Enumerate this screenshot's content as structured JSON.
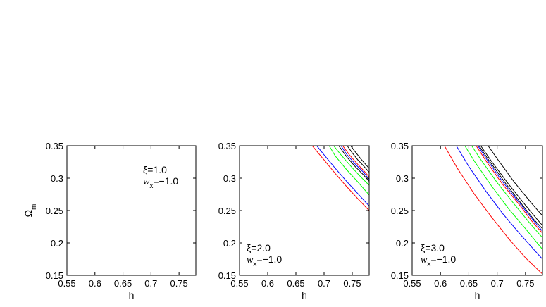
{
  "chart_data": [
    {
      "type": "line",
      "xlabel": "h",
      "ylabel": "Ω",
      "ylabel_sub": "m",
      "xlim": [
        0.55,
        0.78
      ],
      "ylim": [
        0.15,
        0.35
      ],
      "xticks": [
        "0.55",
        "0.6",
        "0.65",
        "0.7",
        "0.75"
      ],
      "yticks": [
        "0.15",
        "0.2",
        "0.25",
        "0.3",
        "0.35"
      ],
      "annotation": {
        "xi": "ξ=1.0",
        "w": "w",
        "w_sub": "x",
        "w_val": "=−1.0"
      },
      "series": []
    },
    {
      "type": "line",
      "xlabel": "h",
      "ylabel": "",
      "ylabel_sub": "",
      "xlim": [
        0.55,
        0.78
      ],
      "ylim": [
        0.15,
        0.35
      ],
      "xticks": [
        "0.55",
        "0.6",
        "0.65",
        "0.7",
        "0.75"
      ],
      "yticks": [
        "0.15",
        "0.2",
        "0.25",
        "0.3",
        "0.35"
      ],
      "annotation": {
        "xi": "ξ=2.0",
        "w": "w",
        "w_sub": "x",
        "w_val": "=−1.0"
      },
      "series": [
        {
          "color": "#ff0000",
          "x": [
            0.679,
            0.7,
            0.72,
            0.74,
            0.76,
            0.78
          ],
          "y": [
            0.35,
            0.328,
            0.307,
            0.287,
            0.268,
            0.25
          ]
        },
        {
          "color": "#0000ff",
          "x": [
            0.687,
            0.7,
            0.72,
            0.74,
            0.76,
            0.78
          ],
          "y": [
            0.35,
            0.336,
            0.315,
            0.295,
            0.276,
            0.257
          ]
        },
        {
          "color": "#00ff00",
          "x": [
            0.709,
            0.72,
            0.74,
            0.76,
            0.78
          ],
          "y": [
            0.35,
            0.334,
            0.313,
            0.294,
            0.274
          ]
        },
        {
          "color": "#00ff00",
          "x": [
            0.717,
            0.73,
            0.75,
            0.765,
            0.78
          ],
          "y": [
            0.35,
            0.336,
            0.316,
            0.302,
            0.289
          ]
        },
        {
          "color": "#000000",
          "x": [
            0.726,
            0.74,
            0.755,
            0.77,
            0.78
          ],
          "y": [
            0.35,
            0.333,
            0.318,
            0.305,
            0.295
          ]
        },
        {
          "color": "#0000ff",
          "x": [
            0.73,
            0.74,
            0.755,
            0.77,
            0.78
          ],
          "y": [
            0.35,
            0.337,
            0.322,
            0.309,
            0.298
          ]
        },
        {
          "color": "#ff0000",
          "x": [
            0.733,
            0.745,
            0.76,
            0.77,
            0.78
          ],
          "y": [
            0.35,
            0.336,
            0.321,
            0.312,
            0.302
          ]
        },
        {
          "color": "#000000",
          "x": [
            0.741,
            0.75,
            0.76,
            0.77,
            0.78
          ],
          "y": [
            0.35,
            0.339,
            0.328,
            0.319,
            0.309
          ]
        },
        {
          "color": "#000000",
          "x": [
            0.747,
            0.755,
            0.765,
            0.775,
            0.78
          ],
          "y": [
            0.35,
            0.341,
            0.33,
            0.32,
            0.315
          ]
        }
      ]
    },
    {
      "type": "line",
      "xlabel": "h",
      "ylabel": "",
      "ylabel_sub": "",
      "xlim": [
        0.55,
        0.78
      ],
      "ylim": [
        0.15,
        0.35
      ],
      "xticks": [
        "0.55",
        "0.6",
        "0.65",
        "0.7",
        "0.75"
      ],
      "yticks": [
        "0.15",
        "0.2",
        "0.25",
        "0.3",
        "0.35"
      ],
      "annotation": {
        "xi": "ξ=3.0",
        "w": "w",
        "w_sub": "x",
        "w_val": "=−1.0"
      },
      "series": [
        {
          "color": "#ff0000",
          "x": [
            0.607,
            0.63,
            0.66,
            0.69,
            0.72,
            0.75,
            0.78
          ],
          "y": [
            0.35,
            0.315,
            0.275,
            0.24,
            0.207,
            0.177,
            0.152
          ]
        },
        {
          "color": "#0000ff",
          "x": [
            0.628,
            0.65,
            0.68,
            0.71,
            0.74,
            0.78
          ],
          "y": [
            0.35,
            0.318,
            0.28,
            0.245,
            0.214,
            0.175
          ]
        },
        {
          "color": "#00ff00",
          "x": [
            0.643,
            0.66,
            0.69,
            0.72,
            0.75,
            0.78
          ],
          "y": [
            0.35,
            0.326,
            0.288,
            0.253,
            0.222,
            0.19
          ]
        },
        {
          "color": "#00ff00",
          "x": [
            0.655,
            0.67,
            0.7,
            0.73,
            0.76,
            0.78
          ],
          "y": [
            0.35,
            0.33,
            0.293,
            0.26,
            0.228,
            0.208
          ]
        },
        {
          "color": "#ff0000",
          "x": [
            0.663,
            0.68,
            0.71,
            0.74,
            0.76,
            0.78
          ],
          "y": [
            0.35,
            0.327,
            0.29,
            0.258,
            0.235,
            0.215
          ]
        },
        {
          "color": "#0000ff",
          "x": [
            0.666,
            0.68,
            0.71,
            0.74,
            0.76,
            0.78
          ],
          "y": [
            0.35,
            0.331,
            0.294,
            0.261,
            0.239,
            0.218
          ]
        },
        {
          "color": "#000000",
          "x": [
            0.668,
            0.685,
            0.715,
            0.745,
            0.765,
            0.78
          ],
          "y": [
            0.35,
            0.328,
            0.292,
            0.258,
            0.236,
            0.222
          ]
        },
        {
          "color": "#000000",
          "x": [
            0.671,
            0.69,
            0.72,
            0.75,
            0.77,
            0.78
          ],
          "y": [
            0.35,
            0.326,
            0.291,
            0.258,
            0.237,
            0.227
          ]
        },
        {
          "color": "#000000",
          "x": [
            0.684,
            0.7,
            0.73,
            0.76,
            0.78
          ],
          "y": [
            0.35,
            0.33,
            0.294,
            0.262,
            0.242
          ]
        }
      ]
    }
  ]
}
